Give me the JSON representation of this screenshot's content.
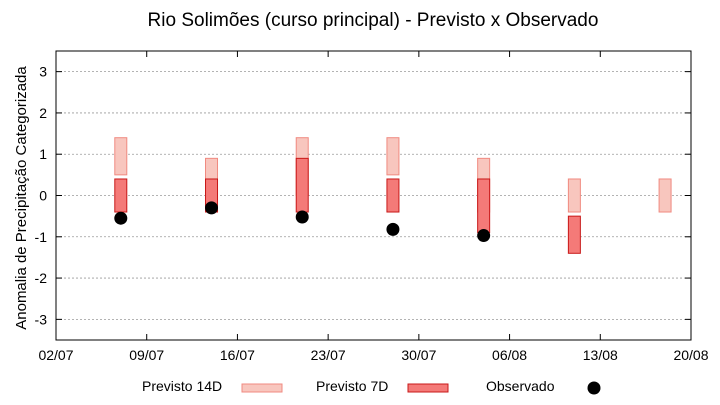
{
  "chart_data": {
    "type": "range-bar",
    "title": "Rio Solimões (curso principal) - Previsto x Observado",
    "xlabel": "",
    "ylabel": "Anomalia de Precipitação Categorizada",
    "ylim": [
      -3.5,
      3.5
    ],
    "yticks": [
      -3,
      -2,
      -1,
      0,
      1,
      2,
      3
    ],
    "ytick_labels": [
      "-3",
      "-2",
      "-1",
      "0",
      "1",
      "2",
      "3"
    ],
    "xlim": [
      "2025-07-02",
      "2025-08-20"
    ],
    "xticks": [
      "2025-07-02",
      "2025-07-09",
      "2025-07-16",
      "2025-07-23",
      "2025-07-30",
      "2025-08-06",
      "2025-08-13",
      "2025-08-20"
    ],
    "xtick_labels": [
      "02/07",
      "09/07",
      "16/07",
      "23/07",
      "30/07",
      "06/08",
      "13/08",
      "20/08"
    ],
    "grid": true,
    "legend_position": "bottom",
    "series": [
      {
        "name": "Previsto 14D",
        "kind": "range",
        "color": "#f8c6be",
        "edge_color": "#f08a80",
        "points": [
          {
            "x": "2025-07-07",
            "low": 0.5,
            "high": 1.4
          },
          {
            "x": "2025-07-14",
            "low": 0.0,
            "high": 0.9
          },
          {
            "x": "2025-07-21",
            "low": 0.0,
            "high": 1.4
          },
          {
            "x": "2025-07-28",
            "low": 0.5,
            "high": 1.4
          },
          {
            "x": "2025-08-04",
            "low": -0.4,
            "high": 0.9
          },
          {
            "x": "2025-08-11",
            "low": -0.4,
            "high": 0.4
          },
          {
            "x": "2025-08-18",
            "low": -0.4,
            "high": 0.4
          }
        ]
      },
      {
        "name": "Previsto 7D",
        "kind": "range",
        "color": "#f47a78",
        "edge_color": "#c81818",
        "points": [
          {
            "x": "2025-07-07",
            "low": -0.4,
            "high": 0.4
          },
          {
            "x": "2025-07-14",
            "low": -0.4,
            "high": 0.4
          },
          {
            "x": "2025-07-21",
            "low": -0.4,
            "high": 0.9
          },
          {
            "x": "2025-07-28",
            "low": -0.4,
            "high": 0.4
          },
          {
            "x": "2025-08-04",
            "low": -0.9,
            "high": 0.4
          },
          {
            "x": "2025-08-11",
            "low": -1.4,
            "high": -0.5
          }
        ]
      },
      {
        "name": "Observado",
        "kind": "point",
        "color": "#000000",
        "points": [
          {
            "x": "2025-07-07",
            "y": -0.55
          },
          {
            "x": "2025-07-14",
            "y": -0.3
          },
          {
            "x": "2025-07-21",
            "y": -0.52
          },
          {
            "x": "2025-07-28",
            "y": -0.82
          },
          {
            "x": "2025-08-04",
            "y": -0.97
          }
        ]
      }
    ]
  }
}
